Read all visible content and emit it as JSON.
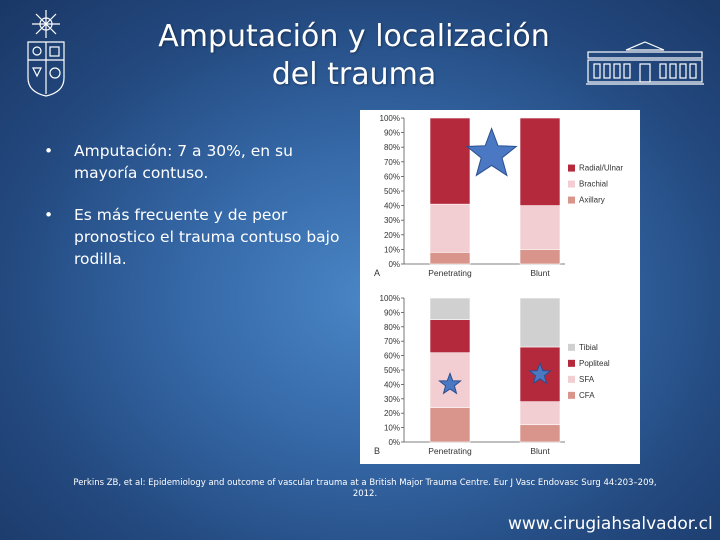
{
  "slide": {
    "title_line1": "Amputación y localización",
    "title_line2": "del trauma",
    "bullets": [
      "Amputación: 7 a 30%, en su mayoría contuso.",
      "Es más frecuente y de peor pronostico el trauma contuso bajo rodilla."
    ],
    "citation": "Perkins ZB, et al: Epidemiology and outcome of vascular trauma at a British Major Trauma Centre. Eur J Vasc Endovasc Surg 44:203–209, 2012.",
    "website": "www.cirugiahsalvador.cl"
  },
  "icons": [
    "university-crest-icon",
    "building-facade-icon",
    "star-icon"
  ],
  "colors": {
    "background": "#2f5f9c",
    "bar_dark_red": "#b5293d",
    "bar_pink": "#f2cdd1",
    "bar_salmon": "#d9948b",
    "bar_gray": "#d0d0d0",
    "star": "#4a78c2"
  },
  "chart_data": [
    {
      "type": "bar",
      "stacked": true,
      "panel_label": "A",
      "categories": [
        "Penetrating",
        "Blunt"
      ],
      "ylim": [
        0,
        100
      ],
      "y_ticks": [
        "0%",
        "10%",
        "20%",
        "30%",
        "40%",
        "50%",
        "60%",
        "70%",
        "80%",
        "90%",
        "100%"
      ],
      "series": [
        {
          "name": "Axillary",
          "color": "#d9948b",
          "values": [
            8,
            10
          ]
        },
        {
          "name": "Brachial",
          "color": "#f2cdd1",
          "values": [
            33,
            30
          ]
        },
        {
          "name": "Radial/Ulnar",
          "color": "#b5293d",
          "values": [
            59,
            60
          ]
        }
      ],
      "legend_position": "right",
      "stars": [
        {
          "category": "Penetrating",
          "offset": 0.8,
          "y": 75,
          "size": "large"
        }
      ]
    },
    {
      "type": "bar",
      "stacked": true,
      "panel_label": "B",
      "categories": [
        "Penetrating",
        "Blunt"
      ],
      "ylim": [
        0,
        100
      ],
      "y_ticks": [
        "0%",
        "10%",
        "20%",
        "30%",
        "40%",
        "50%",
        "60%",
        "70%",
        "80%",
        "90%",
        "100%"
      ],
      "series": [
        {
          "name": "CFA",
          "color": "#d9948b",
          "values": [
            24,
            12
          ]
        },
        {
          "name": "SFA",
          "color": "#f2cdd1",
          "values": [
            38,
            16
          ]
        },
        {
          "name": "Popliteal",
          "color": "#b5293d",
          "values": [
            23,
            38
          ]
        },
        {
          "name": "Tibial",
          "color": "#d0d0d0",
          "values": [
            15,
            34
          ]
        }
      ],
      "legend_position": "right",
      "stars": [
        {
          "category": "Penetrating",
          "offset": 0,
          "y": 40,
          "size": "small"
        },
        {
          "category": "Blunt",
          "offset": 0,
          "y": 47,
          "size": "small"
        }
      ]
    }
  ]
}
